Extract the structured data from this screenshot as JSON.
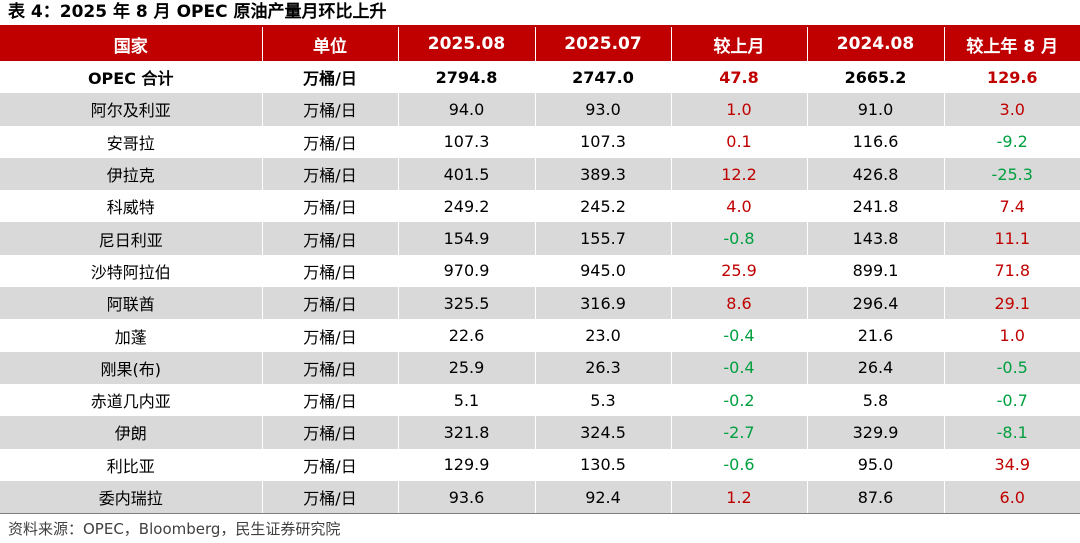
{
  "title": "表 4：2025 年 8 月 OPEC 原油产量月环比上升",
  "source": "资料来源：OPEC，Bloomberg，民生证券研究院",
  "colors": {
    "accent": "#c00000",
    "up": "#c00000",
    "down": "#00a040",
    "stripe": "#d9d9d9"
  },
  "columns": [
    "国家",
    "单位",
    "2025.08",
    "2025.07",
    "较上月",
    "2024.08",
    "较上年 8 月"
  ],
  "rows": [
    {
      "country": "OPEC 合计",
      "unit": "万桶/日",
      "aug25": "2794.8",
      "jul25": "2747.0",
      "mom": "47.8",
      "aug24": "2665.2",
      "yoy": "129.6"
    },
    {
      "country": "阿尔及利亚",
      "unit": "万桶/日",
      "aug25": "94.0",
      "jul25": "93.0",
      "mom": "1.0",
      "aug24": "91.0",
      "yoy": "3.0"
    },
    {
      "country": "安哥拉",
      "unit": "万桶/日",
      "aug25": "107.3",
      "jul25": "107.3",
      "mom": "0.1",
      "aug24": "116.6",
      "yoy": "-9.2"
    },
    {
      "country": "伊拉克",
      "unit": "万桶/日",
      "aug25": "401.5",
      "jul25": "389.3",
      "mom": "12.2",
      "aug24": "426.8",
      "yoy": "-25.3"
    },
    {
      "country": "科威特",
      "unit": "万桶/日",
      "aug25": "249.2",
      "jul25": "245.2",
      "mom": "4.0",
      "aug24": "241.8",
      "yoy": "7.4"
    },
    {
      "country": "尼日利亚",
      "unit": "万桶/日",
      "aug25": "154.9",
      "jul25": "155.7",
      "mom": "-0.8",
      "aug24": "143.8",
      "yoy": "11.1"
    },
    {
      "country": "沙特阿拉伯",
      "unit": "万桶/日",
      "aug25": "970.9",
      "jul25": "945.0",
      "mom": "25.9",
      "aug24": "899.1",
      "yoy": "71.8"
    },
    {
      "country": "阿联酋",
      "unit": "万桶/日",
      "aug25": "325.5",
      "jul25": "316.9",
      "mom": "8.6",
      "aug24": "296.4",
      "yoy": "29.1"
    },
    {
      "country": "加蓬",
      "unit": "万桶/日",
      "aug25": "22.6",
      "jul25": "23.0",
      "mom": "-0.4",
      "aug24": "21.6",
      "yoy": "1.0"
    },
    {
      "country": "刚果(布)",
      "unit": "万桶/日",
      "aug25": "25.9",
      "jul25": "26.3",
      "mom": "-0.4",
      "aug24": "26.4",
      "yoy": "-0.5"
    },
    {
      "country": "赤道几内亚",
      "unit": "万桶/日",
      "aug25": "5.1",
      "jul25": "5.3",
      "mom": "-0.2",
      "aug24": "5.8",
      "yoy": "-0.7"
    },
    {
      "country": "伊朗",
      "unit": "万桶/日",
      "aug25": "321.8",
      "jul25": "324.5",
      "mom": "-2.7",
      "aug24": "329.9",
      "yoy": "-8.1"
    },
    {
      "country": "利比亚",
      "unit": "万桶/日",
      "aug25": "129.9",
      "jul25": "130.5",
      "mom": "-0.6",
      "aug24": "95.0",
      "yoy": "34.9"
    },
    {
      "country": "委内瑞拉",
      "unit": "万桶/日",
      "aug25": "93.6",
      "jul25": "92.4",
      "mom": "1.2",
      "aug24": "87.6",
      "yoy": "6.0"
    }
  ]
}
